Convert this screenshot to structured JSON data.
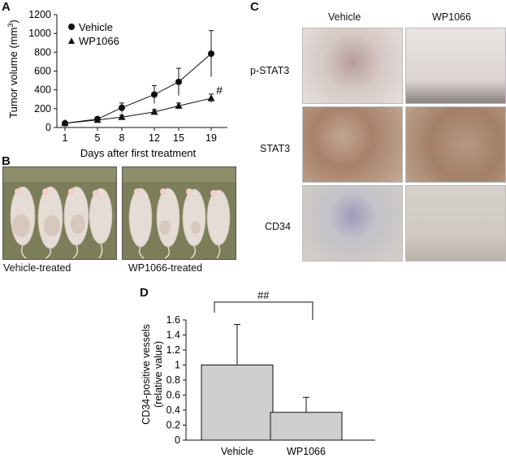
{
  "panels": {
    "A": "A",
    "B": "B",
    "C": "C",
    "D": "D"
  },
  "chart_data": [
    {
      "type": "line",
      "panel": "A",
      "xlabel": "Days after first treatment",
      "ylabel": "Tumor volume (mm",
      "ylabel_sup": "3",
      "ylabel_end": ")",
      "x": [
        1,
        5,
        8,
        12,
        15,
        19
      ],
      "x_tick_labels": [
        "1",
        "5",
        "8",
        "12",
        "15",
        "19"
      ],
      "yticks": [
        0,
        200,
        400,
        600,
        800,
        1000,
        1200
      ],
      "y_tick_labels": [
        "0",
        "200",
        "400",
        "600",
        "800",
        "1000",
        "1200"
      ],
      "ylim": [
        0,
        1200
      ],
      "legend_position": "top-left",
      "series": [
        {
          "name": "Vehicle",
          "marker": "circle",
          "values": [
            45,
            90,
            210,
            350,
            485,
            785
          ],
          "err": [
            10,
            15,
            50,
            95,
            145,
            245
          ]
        },
        {
          "name": "WP1066",
          "marker": "triangle",
          "values": [
            45,
            80,
            110,
            165,
            230,
            310
          ],
          "err": [
            8,
            12,
            20,
            25,
            30,
            45
          ]
        }
      ],
      "annotations": [
        {
          "text": "#",
          "x": 19,
          "y": 390
        }
      ]
    },
    {
      "type": "bar",
      "panel": "D",
      "categories": [
        "Vehicle",
        "WP1066"
      ],
      "values": [
        1.0,
        0.37
      ],
      "err": [
        0.54,
        0.2
      ],
      "ylabel_lines": [
        "CD34-positive vessels",
        "(relative value)"
      ],
      "yticks": [
        0,
        0.2,
        0.4,
        0.6,
        0.8,
        1,
        1.2,
        1.4,
        1.6
      ],
      "y_tick_labels": [
        "0",
        "0.2",
        "0.4",
        "0.6",
        "0.8",
        "1",
        "1.2",
        "1.4",
        "1.6"
      ],
      "ylim": [
        0,
        1.6
      ],
      "significance": "##",
      "bar_color": "#cfcfcf"
    }
  ],
  "panelB": {
    "captions": [
      "Vehicle-treated",
      "WP1066-treated"
    ],
    "photo_color": "#7b7e58"
  },
  "panelC": {
    "columns": [
      "Vehicle",
      "WP1066"
    ],
    "rows": [
      "p-STAT3",
      "STAT3",
      "CD34"
    ]
  }
}
